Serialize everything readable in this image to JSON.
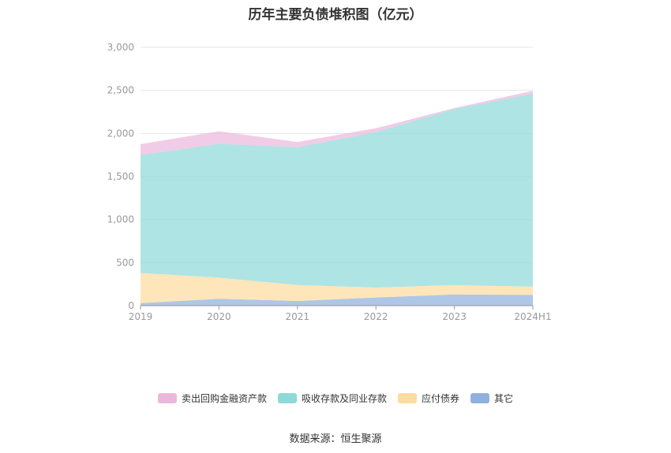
{
  "chart_data": {
    "type": "area",
    "stacked": true,
    "title": "历年主要负债堆积图（亿元）",
    "categories": [
      "2019",
      "2020",
      "2021",
      "2022",
      "2023",
      "2024H1"
    ],
    "ylim": [
      0,
      3000
    ],
    "yticks": [
      "0",
      "500",
      "1,000",
      "1,500",
      "2,000",
      "2,500",
      "3,000"
    ],
    "ytick_values": [
      0,
      500,
      1000,
      1500,
      2000,
      2500,
      3000
    ],
    "grid": true,
    "legend_position": "bottom",
    "series": [
      {
        "name": "其它",
        "color": "#8fb1de",
        "values": [
          30,
          80,
          55,
          95,
          130,
          125
        ]
      },
      {
        "name": "应付债券",
        "color": "#fddca0",
        "values": [
          350,
          245,
          185,
          115,
          110,
          95
        ]
      },
      {
        "name": "吸收存款及同业存款",
        "color": "#8fd9d9",
        "values": [
          1370,
          1555,
          1600,
          1805,
          2045,
          2240
        ]
      },
      {
        "name": "卖出回购金融资产款",
        "color": "#ebb8dc",
        "values": [
          125,
          145,
          60,
          45,
          10,
          35
        ]
      }
    ],
    "legend_order": [
      3,
      2,
      1,
      0
    ]
  },
  "source": "数据来源：恒生聚源"
}
